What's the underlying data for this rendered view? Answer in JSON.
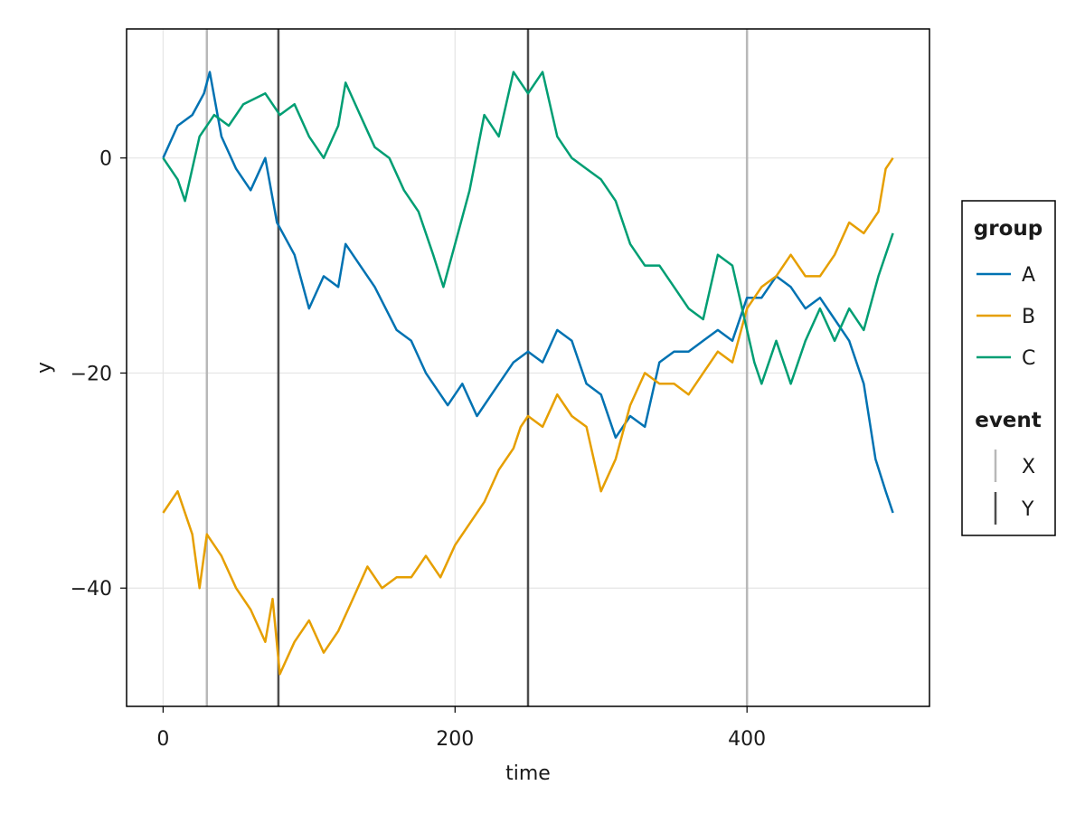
{
  "chart_data": {
    "type": "line",
    "xlabel": "time",
    "ylabel": "y",
    "xlim": [
      -25,
      525
    ],
    "ylim": [
      -51,
      12
    ],
    "xticks": [
      0,
      200,
      400
    ],
    "yticks": [
      0,
      -20,
      -40
    ],
    "grid": true,
    "legend_position": "right",
    "series": [
      {
        "name": "A",
        "color": "#0072b2",
        "points": [
          [
            0,
            0
          ],
          [
            10,
            3
          ],
          [
            20,
            4
          ],
          [
            28,
            6
          ],
          [
            32,
            8
          ],
          [
            40,
            2
          ],
          [
            50,
            -1
          ],
          [
            60,
            -3
          ],
          [
            70,
            0
          ],
          [
            78,
            -6
          ],
          [
            90,
            -9
          ],
          [
            100,
            -14
          ],
          [
            110,
            -11
          ],
          [
            120,
            -12
          ],
          [
            125,
            -8
          ],
          [
            135,
            -10
          ],
          [
            145,
            -12
          ],
          [
            160,
            -16
          ],
          [
            170,
            -17
          ],
          [
            180,
            -20
          ],
          [
            195,
            -23
          ],
          [
            205,
            -21
          ],
          [
            215,
            -24
          ],
          [
            225,
            -22
          ],
          [
            240,
            -19
          ],
          [
            250,
            -18
          ],
          [
            260,
            -19
          ],
          [
            270,
            -16
          ],
          [
            280,
            -17
          ],
          [
            290,
            -21
          ],
          [
            300,
            -22
          ],
          [
            310,
            -26
          ],
          [
            320,
            -24
          ],
          [
            330,
            -25
          ],
          [
            340,
            -19
          ],
          [
            350,
            -18
          ],
          [
            360,
            -18
          ],
          [
            370,
            -17
          ],
          [
            380,
            -16
          ],
          [
            390,
            -17
          ],
          [
            400,
            -13
          ],
          [
            410,
            -13
          ],
          [
            420,
            -11
          ],
          [
            430,
            -12
          ],
          [
            440,
            -14
          ],
          [
            450,
            -13
          ],
          [
            460,
            -15
          ],
          [
            470,
            -17
          ],
          [
            480,
            -21
          ],
          [
            488,
            -28
          ],
          [
            495,
            -31
          ],
          [
            500,
            -33
          ]
        ]
      },
      {
        "name": "B",
        "color": "#e69f00",
        "points": [
          [
            0,
            -33
          ],
          [
            10,
            -31
          ],
          [
            20,
            -35
          ],
          [
            25,
            -40
          ],
          [
            30,
            -35
          ],
          [
            40,
            -37
          ],
          [
            50,
            -40
          ],
          [
            60,
            -42
          ],
          [
            70,
            -45
          ],
          [
            75,
            -41
          ],
          [
            80,
            -48
          ],
          [
            90,
            -45
          ],
          [
            100,
            -43
          ],
          [
            110,
            -46
          ],
          [
            120,
            -44
          ],
          [
            130,
            -41
          ],
          [
            140,
            -38
          ],
          [
            150,
            -40
          ],
          [
            160,
            -39
          ],
          [
            170,
            -39
          ],
          [
            180,
            -37
          ],
          [
            190,
            -39
          ],
          [
            200,
            -36
          ],
          [
            210,
            -34
          ],
          [
            220,
            -32
          ],
          [
            230,
            -29
          ],
          [
            240,
            -27
          ],
          [
            245,
            -25
          ],
          [
            250,
            -24
          ],
          [
            260,
            -25
          ],
          [
            270,
            -22
          ],
          [
            280,
            -24
          ],
          [
            290,
            -25
          ],
          [
            300,
            -31
          ],
          [
            310,
            -28
          ],
          [
            320,
            -23
          ],
          [
            330,
            -20
          ],
          [
            340,
            -21
          ],
          [
            350,
            -21
          ],
          [
            360,
            -22
          ],
          [
            370,
            -20
          ],
          [
            380,
            -18
          ],
          [
            390,
            -19
          ],
          [
            400,
            -14
          ],
          [
            410,
            -12
          ],
          [
            420,
            -11
          ],
          [
            430,
            -9
          ],
          [
            440,
            -11
          ],
          [
            450,
            -11
          ],
          [
            460,
            -9
          ],
          [
            470,
            -6
          ],
          [
            480,
            -7
          ],
          [
            490,
            -5
          ],
          [
            495,
            -1
          ],
          [
            500,
            0
          ]
        ]
      },
      {
        "name": "C",
        "color": "#009e73",
        "points": [
          [
            0,
            0
          ],
          [
            10,
            -2
          ],
          [
            15,
            -4
          ],
          [
            25,
            2
          ],
          [
            35,
            4
          ],
          [
            45,
            3
          ],
          [
            55,
            5
          ],
          [
            70,
            6
          ],
          [
            80,
            4
          ],
          [
            90,
            5
          ],
          [
            100,
            2
          ],
          [
            110,
            0
          ],
          [
            120,
            3
          ],
          [
            125,
            7
          ],
          [
            135,
            4
          ],
          [
            145,
            1
          ],
          [
            155,
            0
          ],
          [
            165,
            -3
          ],
          [
            175,
            -5
          ],
          [
            185,
            -9
          ],
          [
            192,
            -12
          ],
          [
            200,
            -8
          ],
          [
            210,
            -3
          ],
          [
            220,
            4
          ],
          [
            230,
            2
          ],
          [
            240,
            8
          ],
          [
            250,
            6
          ],
          [
            260,
            8
          ],
          [
            270,
            2
          ],
          [
            280,
            0
          ],
          [
            290,
            -1
          ],
          [
            300,
            -2
          ],
          [
            310,
            -4
          ],
          [
            320,
            -8
          ],
          [
            330,
            -10
          ],
          [
            340,
            -10
          ],
          [
            350,
            -12
          ],
          [
            360,
            -14
          ],
          [
            370,
            -15
          ],
          [
            380,
            -9
          ],
          [
            390,
            -10
          ],
          [
            400,
            -16
          ],
          [
            405,
            -19
          ],
          [
            410,
            -21
          ],
          [
            420,
            -17
          ],
          [
            430,
            -21
          ],
          [
            440,
            -17
          ],
          [
            450,
            -14
          ],
          [
            460,
            -17
          ],
          [
            470,
            -14
          ],
          [
            480,
            -16
          ],
          [
            490,
            -11
          ],
          [
            500,
            -7
          ]
        ]
      }
    ],
    "events": [
      {
        "name": "X",
        "color": "#b8b8b8",
        "x": [
          30,
          400
        ]
      },
      {
        "name": "Y",
        "color": "#4d4d4d",
        "x": [
          79,
          250
        ]
      }
    ],
    "legend": {
      "group_title": "group",
      "event_title": "event"
    }
  }
}
